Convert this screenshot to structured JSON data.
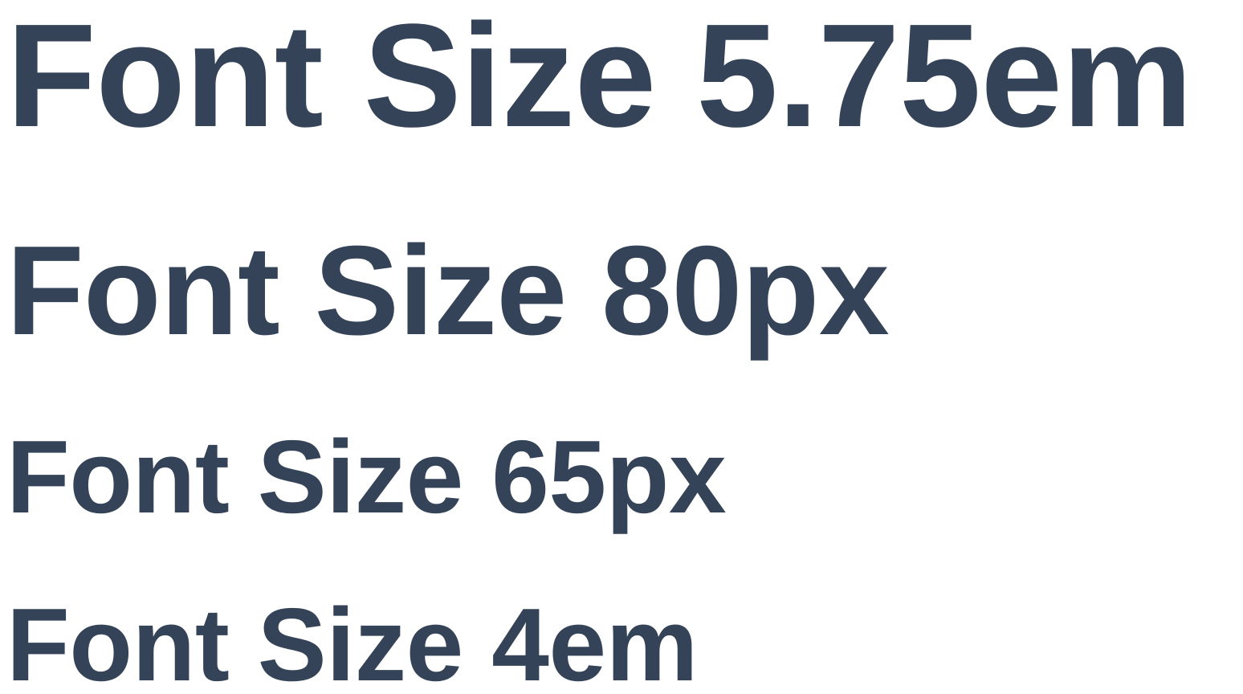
{
  "lines": [
    {
      "text": "Font Size 5.75em"
    },
    {
      "text": "Font Size 80px"
    },
    {
      "text": "Font Size 65px"
    },
    {
      "text": "Font Size 4em"
    }
  ],
  "colors": {
    "text": "#344357",
    "background": "#ffffff"
  }
}
